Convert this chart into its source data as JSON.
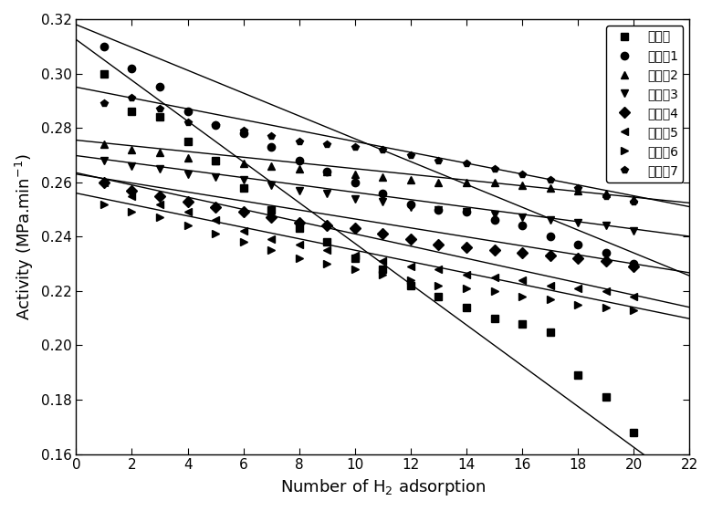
{
  "xlabel": "Number of H$_2$ adsorption",
  "ylabel": "Activity (MPa.min$^{-1}$)",
  "xlim": [
    0,
    22
  ],
  "ylim": [
    0.16,
    0.32
  ],
  "xticks": [
    0,
    2,
    4,
    6,
    8,
    10,
    12,
    14,
    16,
    18,
    20,
    22
  ],
  "yticks": [
    0.16,
    0.18,
    0.2,
    0.22,
    0.24,
    0.26,
    0.28,
    0.3,
    0.32
  ],
  "series": [
    {
      "label": "对比例",
      "marker": "s",
      "x": [
        1,
        2,
        3,
        4,
        5,
        6,
        7,
        8,
        9,
        10,
        11,
        12,
        13,
        14,
        15,
        16,
        17,
        18,
        19,
        20
      ],
      "y": [
        0.3,
        0.286,
        0.284,
        0.275,
        0.268,
        0.258,
        0.25,
        0.243,
        0.238,
        0.232,
        0.228,
        0.222,
        0.218,
        0.214,
        0.21,
        0.208,
        0.205,
        0.189,
        0.181,
        0.168
      ],
      "line_slope": -0.0075,
      "line_intercept": 0.3125
    },
    {
      "label": "催化制1",
      "marker": "o",
      "x": [
        1,
        2,
        3,
        4,
        5,
        6,
        7,
        8,
        9,
        10,
        11,
        12,
        13,
        14,
        15,
        16,
        17,
        18,
        19,
        20
      ],
      "y": [
        0.31,
        0.302,
        0.295,
        0.286,
        0.281,
        0.278,
        0.273,
        0.268,
        0.264,
        0.26,
        0.256,
        0.252,
        0.25,
        0.249,
        0.246,
        0.244,
        0.24,
        0.237,
        0.234,
        0.23
      ],
      "line_slope": -0.0042,
      "line_intercept": 0.318
    },
    {
      "label": "催化制2",
      "marker": "^",
      "x": [
        1,
        2,
        3,
        4,
        5,
        6,
        7,
        8,
        9,
        10,
        11,
        12,
        13,
        14,
        15,
        16,
        17,
        18,
        19,
        20
      ],
      "y": [
        0.274,
        0.272,
        0.271,
        0.269,
        0.268,
        0.267,
        0.266,
        0.265,
        0.264,
        0.263,
        0.262,
        0.261,
        0.26,
        0.26,
        0.26,
        0.259,
        0.258,
        0.257,
        0.256,
        0.254
      ],
      "line_slope": -0.00105,
      "line_intercept": 0.2755
    },
    {
      "label": "催化制3",
      "marker": "v",
      "x": [
        1,
        2,
        3,
        4,
        5,
        6,
        7,
        8,
        9,
        10,
        11,
        12,
        13,
        14,
        15,
        16,
        17,
        18,
        19,
        20
      ],
      "y": [
        0.268,
        0.266,
        0.265,
        0.263,
        0.262,
        0.261,
        0.259,
        0.257,
        0.256,
        0.254,
        0.253,
        0.251,
        0.25,
        0.249,
        0.248,
        0.247,
        0.246,
        0.245,
        0.244,
        0.242
      ],
      "line_slope": -0.00135,
      "line_intercept": 0.2698
    },
    {
      "label": "催化制4",
      "marker": "D",
      "x": [
        1,
        2,
        3,
        4,
        5,
        6,
        7,
        8,
        9,
        10,
        11,
        12,
        13,
        14,
        15,
        16,
        17,
        18,
        19,
        20
      ],
      "y": [
        0.26,
        0.257,
        0.255,
        0.253,
        0.251,
        0.249,
        0.247,
        0.245,
        0.244,
        0.243,
        0.241,
        0.239,
        0.237,
        0.236,
        0.235,
        0.234,
        0.233,
        0.232,
        0.231,
        0.229
      ],
      "line_slope": -0.00165,
      "line_intercept": 0.263
    },
    {
      "label": "催化制5",
      "marker": "<",
      "x": [
        1,
        2,
        3,
        4,
        5,
        6,
        7,
        8,
        9,
        10,
        11,
        12,
        13,
        14,
        15,
        16,
        17,
        18,
        19,
        20
      ],
      "y": [
        0.26,
        0.255,
        0.252,
        0.249,
        0.246,
        0.242,
        0.239,
        0.237,
        0.235,
        0.233,
        0.231,
        0.229,
        0.228,
        0.226,
        0.225,
        0.224,
        0.222,
        0.221,
        0.22,
        0.218
      ],
      "line_slope": -0.00225,
      "line_intercept": 0.2635
    },
    {
      "label": "催化制6",
      "marker": ">",
      "x": [
        1,
        2,
        3,
        4,
        5,
        6,
        7,
        8,
        9,
        10,
        11,
        12,
        13,
        14,
        15,
        16,
        17,
        18,
        19,
        20
      ],
      "y": [
        0.252,
        0.249,
        0.247,
        0.244,
        0.241,
        0.238,
        0.235,
        0.232,
        0.23,
        0.228,
        0.226,
        0.224,
        0.222,
        0.221,
        0.22,
        0.218,
        0.217,
        0.215,
        0.214,
        0.213
      ],
      "line_slope": -0.0021,
      "line_intercept": 0.256
    },
    {
      "label": "催化制7",
      "marker": "p",
      "x": [
        1,
        2,
        3,
        4,
        5,
        6,
        7,
        8,
        9,
        10,
        11,
        12,
        13,
        14,
        15,
        16,
        17,
        18,
        19,
        20
      ],
      "y": [
        0.289,
        0.291,
        0.287,
        0.282,
        0.281,
        0.279,
        0.277,
        0.275,
        0.274,
        0.273,
        0.272,
        0.27,
        0.268,
        0.267,
        0.265,
        0.263,
        0.261,
        0.258,
        0.255,
        0.253
      ],
      "line_slope": -0.002,
      "line_intercept": 0.295
    }
  ],
  "markersize": 6,
  "linewidth": 1.0,
  "legend_fontsize": 10,
  "tick_fontsize": 11,
  "label_fontsize": 13,
  "figsize": [
    7.8,
    5.6
  ]
}
